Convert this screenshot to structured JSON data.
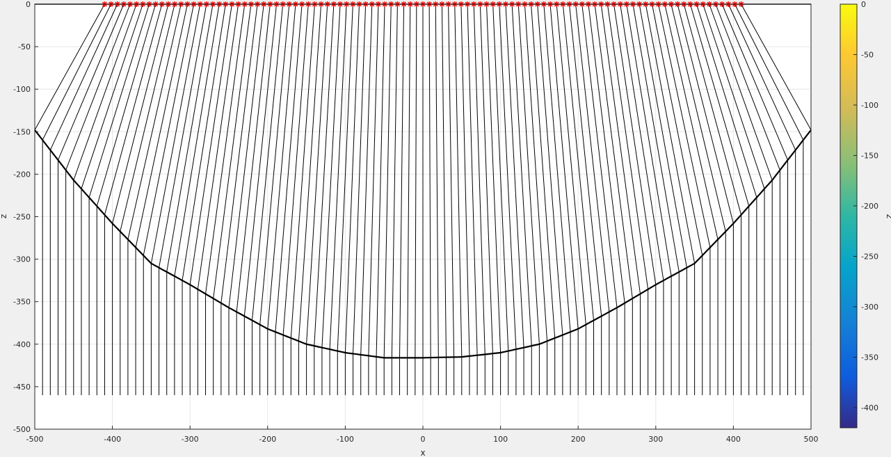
{
  "chart_data": {
    "type": "line",
    "title": "",
    "xlabel": "x",
    "ylabel": "z",
    "xlim": [
      -500,
      500
    ],
    "ylim": [
      -500,
      0
    ],
    "grid": true,
    "x_ticks": [
      -500,
      -400,
      -300,
      -200,
      -100,
      0,
      100,
      200,
      300,
      400,
      500
    ],
    "y_ticks": [
      0,
      -50,
      -100,
      -150,
      -200,
      -250,
      -300,
      -350,
      -400,
      -450,
      -500
    ],
    "surface": {
      "shape": "parabola",
      "x": [
        -500,
        -450,
        -400,
        -350,
        -300,
        -250,
        -200,
        -150,
        -100,
        -50,
        0,
        50,
        100,
        150,
        200,
        250,
        300,
        350,
        400,
        450,
        500
      ],
      "z": [
        -148,
        -207,
        -258,
        -305,
        -330,
        -357,
        -382,
        -400,
        -410,
        -416,
        -416,
        -415,
        -410,
        -400,
        -382,
        -357,
        -330,
        -305,
        -258,
        -207,
        -148
      ]
    },
    "rays": {
      "description_visible": false,
      "count": 101,
      "x_start": -500,
      "x_end": 500,
      "x_step": 10,
      "bottom_z": -460,
      "source_z": 0,
      "source_x_range": [
        -410,
        410
      ],
      "ray_color": "#000000",
      "source_marker_color": "#ff0000"
    },
    "colorbar": {
      "label": "z",
      "ticks": [
        0,
        -50,
        -100,
        -150,
        -200,
        -250,
        -300,
        -350,
        -400
      ],
      "range": [
        -420,
        0
      ],
      "colormap": "parula"
    }
  }
}
